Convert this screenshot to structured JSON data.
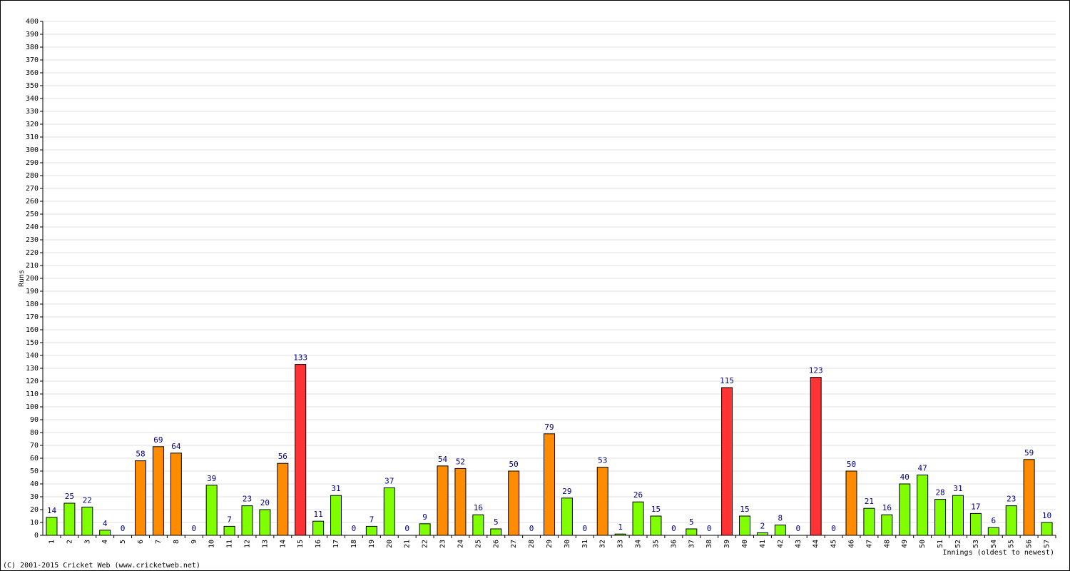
{
  "chart_data": {
    "type": "bar",
    "y_label": "Runs",
    "x_label": "Innings (oldest to newest)",
    "footer": "(C) 2001-2015 Cricket Web (www.cricketweb.net)",
    "categories": [
      "1",
      "2",
      "3",
      "4",
      "5",
      "6",
      "7",
      "8",
      "9",
      "10",
      "11",
      "12",
      "13",
      "14",
      "15",
      "16",
      "17",
      "18",
      "19",
      "20",
      "21",
      "22",
      "23",
      "24",
      "25",
      "26",
      "27",
      "28",
      "29",
      "30",
      "31",
      "32",
      "33",
      "34",
      "35",
      "36",
      "37",
      "38",
      "39",
      "40",
      "41",
      "42",
      "43",
      "44",
      "45",
      "46",
      "47",
      "48",
      "49",
      "50",
      "51",
      "52",
      "53",
      "54",
      "55",
      "56",
      "57"
    ],
    "values": [
      14,
      25,
      22,
      4,
      0,
      58,
      69,
      64,
      0,
      39,
      7,
      23,
      20,
      56,
      133,
      11,
      31,
      0,
      7,
      37,
      0,
      9,
      54,
      52,
      16,
      5,
      50,
      0,
      79,
      29,
      0,
      53,
      1,
      26,
      15,
      0,
      5,
      0,
      115,
      15,
      2,
      8,
      0,
      123,
      0,
      50,
      21,
      16,
      40,
      47,
      28,
      31,
      17,
      6,
      23,
      59,
      10
    ],
    "colors": [
      "#80ff00",
      "#80ff00",
      "#80ff00",
      "#80ff00",
      "#80ff00",
      "#ff8c00",
      "#ff8c00",
      "#ff8c00",
      "#80ff00",
      "#80ff00",
      "#80ff00",
      "#80ff00",
      "#80ff00",
      "#ff8c00",
      "#ff3333",
      "#80ff00",
      "#80ff00",
      "#80ff00",
      "#80ff00",
      "#80ff00",
      "#80ff00",
      "#80ff00",
      "#ff8c00",
      "#ff8c00",
      "#80ff00",
      "#80ff00",
      "#ff8c00",
      "#80ff00",
      "#ff8c00",
      "#80ff00",
      "#80ff00",
      "#ff8c00",
      "#80ff00",
      "#80ff00",
      "#80ff00",
      "#80ff00",
      "#80ff00",
      "#80ff00",
      "#ff3333",
      "#80ff00",
      "#80ff00",
      "#80ff00",
      "#80ff00",
      "#ff3333",
      "#80ff00",
      "#ff8c00",
      "#80ff00",
      "#80ff00",
      "#80ff00",
      "#80ff00",
      "#80ff00",
      "#80ff00",
      "#80ff00",
      "#80ff00",
      "#80ff00",
      "#ff8c00",
      "#80ff00"
    ],
    "ylim": [
      0,
      400
    ],
    "yticks": [
      0,
      10,
      20,
      30,
      40,
      50,
      60,
      70,
      80,
      90,
      100,
      110,
      120,
      130,
      140,
      150,
      160,
      170,
      180,
      190,
      200,
      210,
      220,
      230,
      240,
      250,
      260,
      270,
      280,
      290,
      300,
      310,
      320,
      330,
      340,
      350,
      360,
      370,
      380,
      390,
      400
    ],
    "grid": true
  }
}
